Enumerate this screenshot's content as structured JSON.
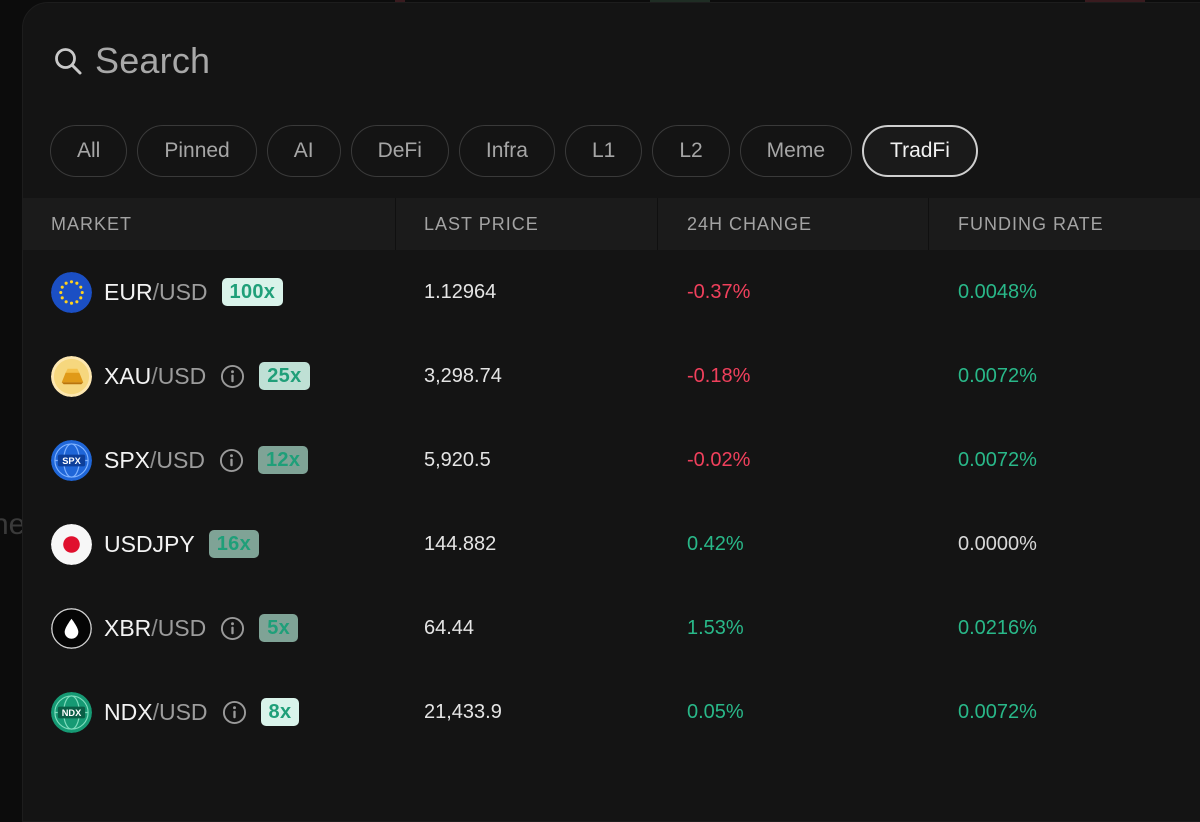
{
  "search": {
    "placeholder": "Search"
  },
  "filters": [
    {
      "label": "All",
      "active": false
    },
    {
      "label": "Pinned",
      "active": false
    },
    {
      "label": "AI",
      "active": false
    },
    {
      "label": "DeFi",
      "active": false
    },
    {
      "label": "Infra",
      "active": false
    },
    {
      "label": "L1",
      "active": false
    },
    {
      "label": "L2",
      "active": false
    },
    {
      "label": "Meme",
      "active": false
    },
    {
      "label": "TradFi",
      "active": true
    }
  ],
  "table": {
    "headers": {
      "market": "MARKET",
      "last_price": "LAST PRICE",
      "change_24h": "24H CHANGE",
      "funding_rate": "FUNDING RATE"
    },
    "rows": [
      {
        "base": "EUR",
        "slash": "/",
        "quote": "USD",
        "icon": "eu-flag-icon",
        "info": false,
        "leverage": "100x",
        "lev_style": "bright",
        "price": "1.12964",
        "change": "-0.37%",
        "change_dir": "neg",
        "funding": "0.0048%",
        "funding_dir": "pos"
      },
      {
        "base": "XAU",
        "slash": "/",
        "quote": "USD",
        "icon": "gold-bar-icon",
        "info": true,
        "leverage": "25x",
        "lev_style": "mid",
        "price": "3,298.74",
        "change": "-0.18%",
        "change_dir": "neg",
        "funding": "0.0072%",
        "funding_dir": "pos"
      },
      {
        "base": "SPX",
        "slash": "/",
        "quote": "USD",
        "icon": "spx-globe-icon",
        "info": true,
        "leverage": "12x",
        "lev_style": "dim",
        "price": "5,920.5",
        "change": "-0.02%",
        "change_dir": "neg",
        "funding": "0.0072%",
        "funding_dir": "pos"
      },
      {
        "base": "USDJPY",
        "slash": "",
        "quote": "",
        "icon": "japan-flag-icon",
        "info": false,
        "leverage": "16x",
        "lev_style": "dim",
        "price": "144.882",
        "change": "0.42%",
        "change_dir": "pos",
        "funding": "0.0000%",
        "funding_dir": "neu"
      },
      {
        "base": "XBR",
        "slash": "/",
        "quote": "USD",
        "icon": "oil-drop-icon",
        "info": true,
        "leverage": "5x",
        "lev_style": "dim",
        "price": "64.44",
        "change": "1.53%",
        "change_dir": "pos",
        "funding": "0.0216%",
        "funding_dir": "pos"
      },
      {
        "base": "NDX",
        "slash": "/",
        "quote": "USD",
        "icon": "ndx-globe-icon",
        "info": true,
        "leverage": "8x",
        "lev_style": "bright",
        "price": "21,433.9",
        "change": "0.05%",
        "change_dir": "pos",
        "funding": "0.0072%",
        "funding_dir": "pos"
      }
    ]
  },
  "colors": {
    "negative": "#f0405c",
    "positive": "#29b889",
    "neutral": "#d8d8d8",
    "leverage_bright_bg": "#d9f3ea",
    "leverage_mid_bg": "#bfe0d5",
    "leverage_dim_bg": "#7fa396",
    "leverage_text": "#1f9f79"
  }
}
